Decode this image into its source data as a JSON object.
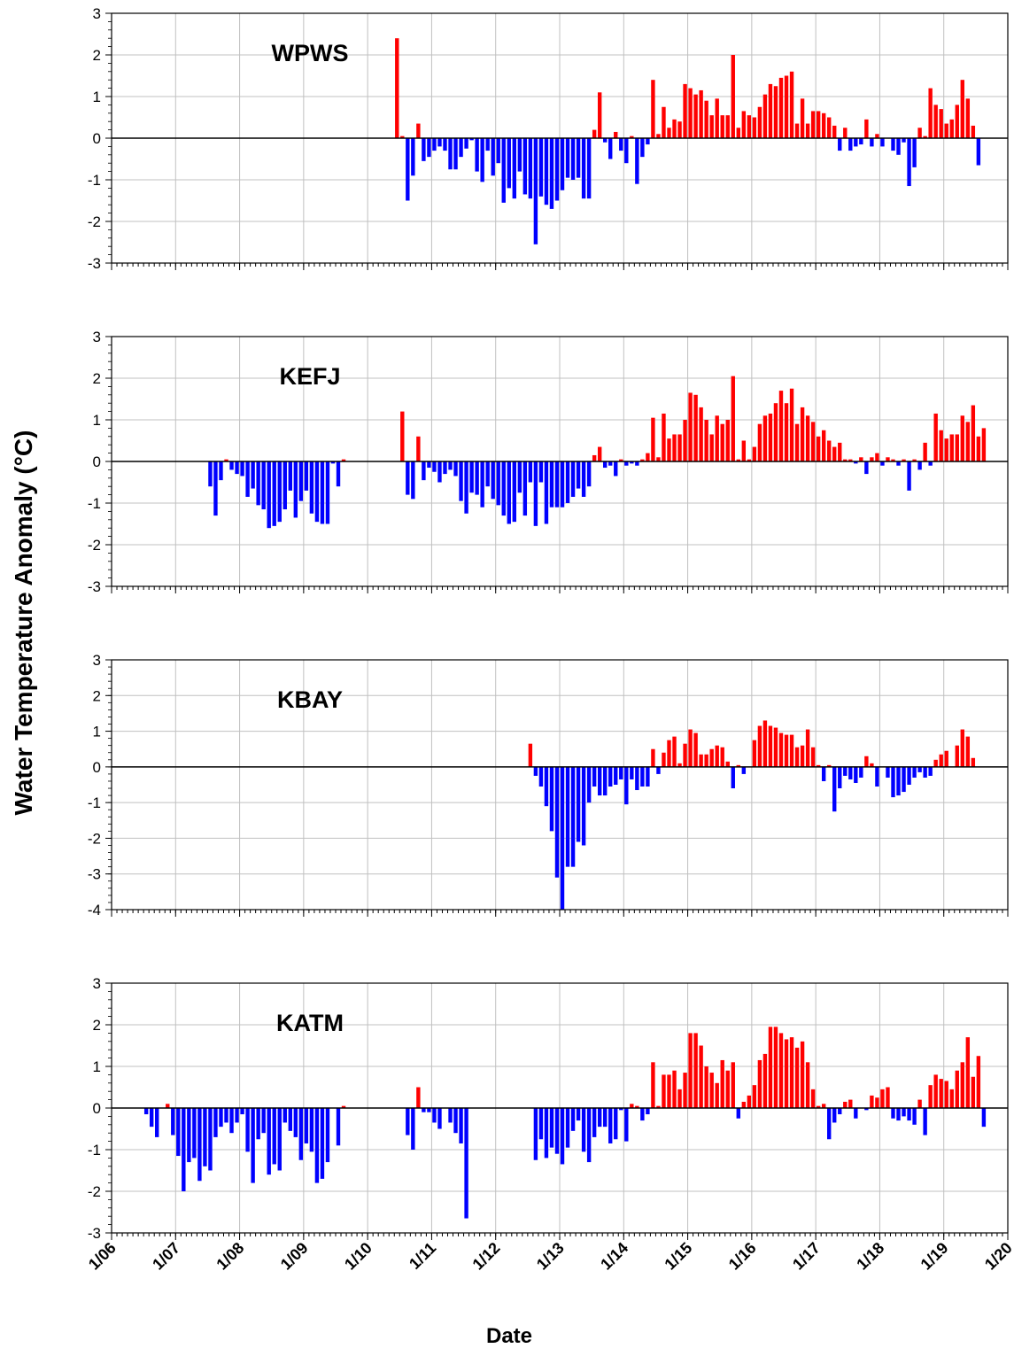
{
  "ylabel": "Water Temperature Anomaly (°C)",
  "xlabel": "Date",
  "xlim": [
    "1/06",
    "1/20"
  ],
  "xticks": [
    "1/06",
    "1/07",
    "1/08",
    "1/09",
    "1/10",
    "1/11",
    "1/12",
    "1/13",
    "1/14",
    "1/15",
    "1/16",
    "1/17",
    "1/18",
    "1/19",
    "1/20"
  ],
  "positive_color": "#ff0000",
  "negative_color": "#0000ff",
  "grid": true,
  "chart_data": [
    {
      "type": "bar",
      "title": "WPWS",
      "ylim": [
        -3,
        3
      ],
      "yticks": [
        -3,
        -2,
        -1,
        0,
        1,
        2,
        3
      ],
      "x": [
        "6/10",
        "7/10",
        "8/10",
        "9/10",
        "10/10",
        "11/10",
        "12/10",
        "1/11",
        "2/11",
        "3/11",
        "4/11",
        "5/11",
        "6/11",
        "7/11",
        "8/11",
        "9/11",
        "10/11",
        "11/11",
        "12/11",
        "1/12",
        "2/12",
        "3/12",
        "4/12",
        "5/12",
        "6/12",
        "7/12",
        "8/12",
        "9/12",
        "10/12",
        "11/12",
        "12/12",
        "1/13",
        "2/13",
        "3/13",
        "4/13",
        "5/13",
        "6/13",
        "7/13",
        "8/13",
        "9/13",
        "10/13",
        "11/13",
        "12/13",
        "1/14",
        "2/14",
        "3/14",
        "4/14",
        "5/14",
        "6/14",
        "7/14",
        "8/14",
        "9/14",
        "10/14",
        "11/14",
        "12/14",
        "1/15",
        "2/15",
        "3/15",
        "4/15",
        "5/15",
        "6/15",
        "7/15",
        "8/15",
        "9/15",
        "10/15",
        "11/15",
        "12/15",
        "1/16",
        "2/16",
        "3/16",
        "4/16",
        "5/16",
        "6/16",
        "7/16",
        "8/16",
        "9/16",
        "10/16",
        "11/16",
        "12/16",
        "1/17",
        "2/17",
        "3/17",
        "4/17",
        "5/17",
        "6/17",
        "7/17",
        "8/17",
        "9/17",
        "10/17",
        "11/17",
        "12/17",
        "1/18",
        "2/18",
        "3/18",
        "4/18",
        "5/18",
        "6/18",
        "7/18",
        "8/18",
        "9/18",
        "10/18",
        "11/18",
        "12/18",
        "1/19",
        "2/19",
        "3/19",
        "4/19",
        "5/19",
        "6/19",
        "7/19"
      ],
      "values": [
        2.4,
        0.05,
        -1.5,
        -0.9,
        0.35,
        -0.55,
        -0.45,
        -0.3,
        -0.2,
        -0.3,
        -0.75,
        -0.75,
        -0.45,
        -0.25,
        -0.05,
        -0.8,
        -1.05,
        -0.3,
        -0.9,
        -0.6,
        -1.55,
        -1.2,
        -1.45,
        -0.8,
        -1.35,
        -1.45,
        -2.55,
        -1.4,
        -1.6,
        -1.7,
        -1.5,
        -1.25,
        -0.95,
        -1.0,
        -0.95,
        -1.45,
        -1.45,
        0.2,
        1.1,
        -0.1,
        -0.5,
        0.15,
        -0.3,
        -0.6,
        0.05,
        -1.1,
        -0.45,
        -0.15,
        1.4,
        0.1,
        0.75,
        0.25,
        0.45,
        0.4,
        1.3,
        1.2,
        1.05,
        1.15,
        0.9,
        0.55,
        0.95,
        0.55,
        0.55,
        2.0,
        0.25,
        0.65,
        0.55,
        0.5,
        0.75,
        1.05,
        1.3,
        1.25,
        1.45,
        1.5,
        1.6,
        0.35,
        0.95,
        0.35,
        0.65,
        0.65,
        0.6,
        0.5,
        0.3,
        -0.3,
        0.25,
        -0.3,
        -0.2,
        -0.15,
        0.45,
        -0.2,
        0.1,
        -0.2,
        0,
        -0.3,
        -0.4,
        -0.1,
        -1.15,
        -0.7,
        0.25,
        0.05,
        1.2,
        0.8,
        0.7,
        0.35,
        0.45,
        0.8,
        1.4,
        0.95,
        0.3,
        -0.65
      ]
    },
    {
      "type": "bar",
      "title": "KEFJ",
      "ylim": [
        -3,
        3
      ],
      "yticks": [
        -3,
        -2,
        -1,
        0,
        1,
        2,
        3
      ],
      "x": [
        "7/07",
        "8/07",
        "9/07",
        "10/07",
        "11/07",
        "12/07",
        "1/08",
        "2/08",
        "3/08",
        "4/08",
        "5/08",
        "6/08",
        "7/08",
        "8/08",
        "9/08",
        "10/08",
        "11/08",
        "12/08",
        "1/09",
        "2/09",
        "3/09",
        "4/09",
        "5/09",
        "6/09",
        "7/09",
        "8/09",
        "7/10",
        "8/10",
        "9/10",
        "10/10",
        "11/10",
        "12/10",
        "1/11",
        "2/11",
        "3/11",
        "4/11",
        "5/11",
        "6/11",
        "7/11",
        "8/11",
        "9/11",
        "10/11",
        "11/11",
        "12/11",
        "1/12",
        "2/12",
        "3/12",
        "4/12",
        "5/12",
        "6/12",
        "7/12",
        "8/12",
        "9/12",
        "10/12",
        "11/12",
        "12/12",
        "1/13",
        "2/13",
        "3/13",
        "4/13",
        "5/13",
        "6/13",
        "7/13",
        "8/13",
        "9/13",
        "10/13",
        "11/13",
        "12/13",
        "1/14",
        "2/14",
        "3/14",
        "4/14",
        "5/14",
        "6/14",
        "7/14",
        "8/14",
        "9/14",
        "10/14",
        "11/14",
        "12/14",
        "1/15",
        "2/15",
        "3/15",
        "4/15",
        "5/15",
        "6/15",
        "7/15",
        "8/15",
        "9/15",
        "10/15",
        "11/15",
        "12/15",
        "1/16",
        "2/16",
        "3/16",
        "4/16",
        "5/16",
        "6/16",
        "7/16",
        "8/16",
        "9/16",
        "10/16",
        "11/16",
        "12/16",
        "1/17",
        "2/17",
        "3/17",
        "4/17",
        "5/17",
        "6/17",
        "7/17",
        "8/17",
        "9/17",
        "10/17",
        "11/17",
        "12/17",
        "1/18",
        "2/18",
        "3/18",
        "4/18",
        "5/18",
        "6/18",
        "7/18",
        "8/18",
        "9/18",
        "10/18",
        "11/18",
        "12/18",
        "1/19",
        "2/19",
        "3/19",
        "4/19",
        "5/19",
        "6/19",
        "7/19",
        "8/19"
      ],
      "values": [
        -0.6,
        -1.3,
        -0.45,
        0.05,
        -0.2,
        -0.3,
        -0.35,
        -0.85,
        -0.65,
        -1.05,
        -1.15,
        -1.6,
        -1.55,
        -1.45,
        -1.15,
        -0.7,
        -1.35,
        -0.95,
        -0.7,
        -1.25,
        -1.45,
        -1.5,
        -1.5,
        -0.05,
        -0.6,
        0.05,
        1.2,
        -0.8,
        -0.9,
        0.6,
        -0.45,
        -0.15,
        -0.25,
        -0.5,
        -0.3,
        -0.2,
        -0.35,
        -0.95,
        -1.25,
        -0.75,
        -0.8,
        -1.1,
        -0.6,
        -0.9,
        -1.05,
        -1.3,
        -1.5,
        -1.45,
        -0.75,
        -1.3,
        -0.5,
        -1.55,
        -0.5,
        -1.5,
        -1.1,
        -1.1,
        -1.1,
        -1.0,
        -0.85,
        -0.65,
        -0.85,
        -0.6,
        0.15,
        0.35,
        -0.15,
        -0.1,
        -0.35,
        0.05,
        -0.1,
        -0.05,
        -0.1,
        0.05,
        0.2,
        1.05,
        0.1,
        1.15,
        0.55,
        0.65,
        0.65,
        1.0,
        1.65,
        1.6,
        1.3,
        1.0,
        0.65,
        1.1,
        0.9,
        1.0,
        2.05,
        0.05,
        0.5,
        0.05,
        0.35,
        0.9,
        1.1,
        1.15,
        1.4,
        1.7,
        1.4,
        1.75,
        0.9,
        1.3,
        1.1,
        0.95,
        0.6,
        0.75,
        0.5,
        0.35,
        0.45,
        0.05,
        0.05,
        -0.05,
        0.1,
        -0.3,
        0.1,
        0.2,
        -0.1,
        0.1,
        0.05,
        -0.1,
        0.05,
        -0.7,
        0.05,
        -0.2,
        0.45,
        -0.1,
        1.15,
        0.75,
        0.55,
        0.65,
        0.65,
        1.1,
        0.95,
        1.35,
        0.6,
        0.8
      ]
    },
    {
      "type": "bar",
      "title": "KBAY",
      "ylim": [
        -4,
        3
      ],
      "yticks": [
        -4,
        -3,
        -2,
        -1,
        0,
        1,
        2,
        3
      ],
      "x": [
        "7/12",
        "8/12",
        "9/12",
        "10/12",
        "11/12",
        "12/12",
        "1/13",
        "2/13",
        "3/13",
        "4/13",
        "5/13",
        "6/13",
        "7/13",
        "8/13",
        "9/13",
        "10/13",
        "11/13",
        "12/13",
        "1/14",
        "2/14",
        "3/14",
        "4/14",
        "5/14",
        "6/14",
        "7/14",
        "8/14",
        "9/14",
        "10/14",
        "11/14",
        "12/14",
        "1/15",
        "2/15",
        "3/15",
        "4/15",
        "5/15",
        "6/15",
        "7/15",
        "8/15",
        "9/15",
        "10/15",
        "11/15",
        "12/15",
        "1/16",
        "2/16",
        "3/16",
        "4/16",
        "5/16",
        "6/16",
        "7/16",
        "8/16",
        "9/16",
        "10/16",
        "11/16",
        "12/16",
        "1/17",
        "2/17",
        "3/17",
        "4/17",
        "5/17",
        "6/17",
        "7/17",
        "8/17",
        "9/17",
        "10/17",
        "11/17",
        "12/17",
        "1/18",
        "2/18",
        "3/18",
        "4/18",
        "5/18",
        "6/18",
        "7/18",
        "8/18",
        "9/18",
        "10/18",
        "11/18",
        "12/18",
        "1/19",
        "2/19",
        "3/19",
        "4/19",
        "5/19",
        "6/19"
      ],
      "values": [
        0.65,
        -0.25,
        -0.55,
        -1.1,
        -1.8,
        -3.1,
        -4.0,
        -2.8,
        -2.8,
        -2.1,
        -2.2,
        -1.0,
        -0.55,
        -0.8,
        -0.8,
        -0.55,
        -0.5,
        -0.35,
        -1.05,
        -0.35,
        -0.65,
        -0.55,
        -0.55,
        0.5,
        -0.2,
        0.4,
        0.75,
        0.85,
        0.1,
        0.65,
        1.05,
        0.95,
        0.35,
        0.35,
        0.5,
        0.6,
        0.55,
        0.15,
        -0.6,
        0.05,
        -0.2,
        0,
        0.75,
        1.15,
        1.3,
        1.15,
        1.1,
        0.95,
        0.9,
        0.9,
        0.55,
        0.6,
        1.05,
        0.55,
        0.05,
        -0.4,
        0.05,
        -1.25,
        -0.6,
        -0.25,
        -0.35,
        -0.45,
        -0.3,
        0.3,
        0.1,
        -0.55,
        0,
        -0.3,
        -0.85,
        -0.8,
        -0.7,
        -0.5,
        -0.3,
        -0.15,
        -0.3,
        -0.25,
        0.2,
        0.35,
        0.45,
        0,
        0.6,
        1.05,
        0.85,
        0.25
      ]
    },
    {
      "type": "bar",
      "title": "KATM",
      "ylim": [
        -3,
        3
      ],
      "yticks": [
        -3,
        -2,
        -1,
        0,
        1,
        2,
        3
      ],
      "x": [
        "7/06",
        "8/06",
        "9/06",
        "10/06",
        "11/06",
        "12/06",
        "1/07",
        "2/07",
        "3/07",
        "4/07",
        "5/07",
        "6/07",
        "7/07",
        "8/07",
        "9/07",
        "10/07",
        "11/07",
        "12/07",
        "1/08",
        "2/08",
        "3/08",
        "4/08",
        "5/08",
        "6/08",
        "7/08",
        "8/08",
        "9/08",
        "10/08",
        "11/08",
        "12/08",
        "1/09",
        "2/09",
        "3/09",
        "4/09",
        "5/09",
        "7/09",
        "8/09",
        "8/10",
        "9/10",
        "10/10",
        "11/10",
        "12/10",
        "1/11",
        "2/11",
        "3/11",
        "4/11",
        "5/11",
        "6/11",
        "7/11",
        "8/12",
        "9/12",
        "10/12",
        "11/12",
        "12/12",
        "1/13",
        "2/13",
        "3/13",
        "4/13",
        "5/13",
        "6/13",
        "7/13",
        "8/13",
        "9/13",
        "10/13",
        "11/13",
        "12/13",
        "1/14",
        "2/14",
        "3/14",
        "4/14",
        "5/14",
        "6/14",
        "7/14",
        "8/14",
        "9/14",
        "10/14",
        "11/14",
        "12/14",
        "1/15",
        "2/15",
        "3/15",
        "4/15",
        "5/15",
        "6/15",
        "7/15",
        "8/15",
        "9/15",
        "10/15",
        "11/15",
        "12/15",
        "1/16",
        "2/16",
        "3/16",
        "4/16",
        "5/16",
        "6/16",
        "7/16",
        "8/16",
        "9/16",
        "10/16",
        "11/16",
        "12/16",
        "1/17",
        "2/17",
        "3/17",
        "4/17",
        "5/17",
        "6/17",
        "7/17",
        "8/17",
        "9/17",
        "10/17",
        "11/17",
        "12/17",
        "1/18",
        "2/18",
        "3/18",
        "4/18",
        "5/18",
        "6/18",
        "7/18",
        "8/18",
        "9/18",
        "10/18",
        "11/18",
        "12/18",
        "1/19",
        "2/19",
        "3/19",
        "4/19",
        "5/19",
        "6/19",
        "7/19",
        "8/19"
      ],
      "values": [
        -0.15,
        -0.45,
        -0.7,
        0,
        0.1,
        -0.65,
        -1.15,
        -2.0,
        -1.3,
        -1.2,
        -1.75,
        -1.4,
        -1.5,
        -0.7,
        -0.45,
        -0.35,
        -0.6,
        -0.35,
        -0.15,
        -1.05,
        -1.8,
        -0.75,
        -0.6,
        -1.6,
        -1.35,
        -1.5,
        -0.35,
        -0.55,
        -0.7,
        -1.25,
        -0.85,
        -1.05,
        -1.8,
        -1.7,
        -1.3,
        -0.9,
        0.05,
        -0.65,
        -1.0,
        0.5,
        -0.1,
        -0.1,
        -0.35,
        -0.5,
        0,
        -0.35,
        -0.6,
        -0.85,
        -2.65,
        -1.25,
        -0.75,
        -1.2,
        -0.95,
        -1.1,
        -1.35,
        -0.95,
        -0.55,
        -0.3,
        -1.05,
        -1.3,
        -0.7,
        -0.45,
        -0.45,
        -0.85,
        -0.75,
        -0.05,
        -0.8,
        0.1,
        0.05,
        -0.3,
        -0.15,
        1.1,
        0.05,
        0.8,
        0.8,
        0.9,
        0.45,
        0.85,
        1.8,
        1.8,
        1.5,
        1.0,
        0.85,
        0.6,
        1.15,
        0.9,
        1.1,
        -0.25,
        0.15,
        0.3,
        0.55,
        1.15,
        1.3,
        1.95,
        1.95,
        1.8,
        1.65,
        1.7,
        1.45,
        1.6,
        1.1,
        0.45,
        0.05,
        0.1,
        -0.75,
        -0.35,
        -0.15,
        0.15,
        0.2,
        -0.25,
        0,
        -0.05,
        0.3,
        0.25,
        0.45,
        0.5,
        -0.25,
        -0.3,
        -0.2,
        -0.3,
        -0.4,
        0.2,
        -0.65,
        0.55,
        0.8,
        0.7,
        0.65,
        0.45,
        0.9,
        1.1,
        1.7,
        0.75,
        1.25,
        -0.45
      ]
    }
  ]
}
